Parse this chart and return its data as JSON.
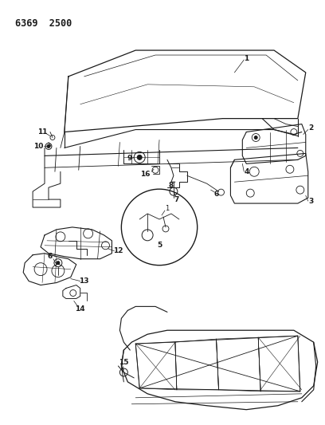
{
  "title_code": "6369  2500",
  "bg_color": "#ffffff",
  "line_color": "#1a1a1a",
  "fig_width": 4.08,
  "fig_height": 5.33,
  "dpi": 100
}
